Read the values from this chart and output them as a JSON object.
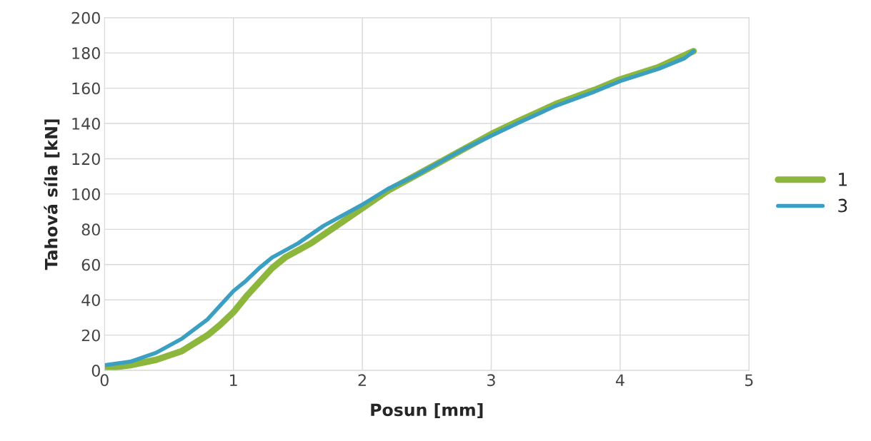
{
  "chart_data": {
    "type": "line",
    "xlabel": "Posun [mm]",
    "ylabel": "Tahová síla [kN]",
    "xlim": [
      0,
      5
    ],
    "xticks": [
      0,
      1,
      2,
      3,
      4,
      5
    ],
    "ylim": [
      0,
      200
    ],
    "yticks": [
      0,
      20,
      40,
      60,
      80,
      100,
      120,
      140,
      160,
      180,
      200
    ],
    "grid": true,
    "legend": "right",
    "marker": "none",
    "line_style": "solid",
    "series": [
      {
        "name": "1",
        "color": "#8db63c",
        "x": [
          0,
          0.2,
          0.4,
          0.6,
          0.8,
          0.9,
          1.0,
          1.1,
          1.2,
          1.3,
          1.4,
          1.6,
          1.8,
          2.0,
          2.2,
          2.4,
          2.6,
          2.8,
          3.0,
          3.2,
          3.5,
          3.8,
          4.0,
          4.3,
          4.57
        ],
        "values": [
          1,
          3,
          6,
          11,
          20,
          26,
          33,
          42,
          50,
          58,
          64,
          72,
          82,
          92,
          102,
          110,
          118,
          126,
          134,
          141,
          151,
          159,
          165,
          172,
          181
        ]
      },
      {
        "name": "3",
        "color": "#3a9fc1",
        "x": [
          0,
          0.2,
          0.4,
          0.6,
          0.8,
          0.9,
          1.0,
          1.1,
          1.2,
          1.3,
          1.5,
          1.7,
          2.0,
          2.2,
          2.4,
          2.6,
          2.8,
          3.0,
          3.2,
          3.5,
          3.8,
          4.0,
          4.3,
          4.5,
          4.57
        ],
        "values": [
          3,
          5,
          10,
          18,
          29,
          37,
          45,
          51,
          58,
          64,
          72,
          82,
          94,
          103,
          110,
          118,
          126,
          133,
          140,
          150,
          158,
          164,
          171,
          177,
          181
        ]
      }
    ]
  }
}
